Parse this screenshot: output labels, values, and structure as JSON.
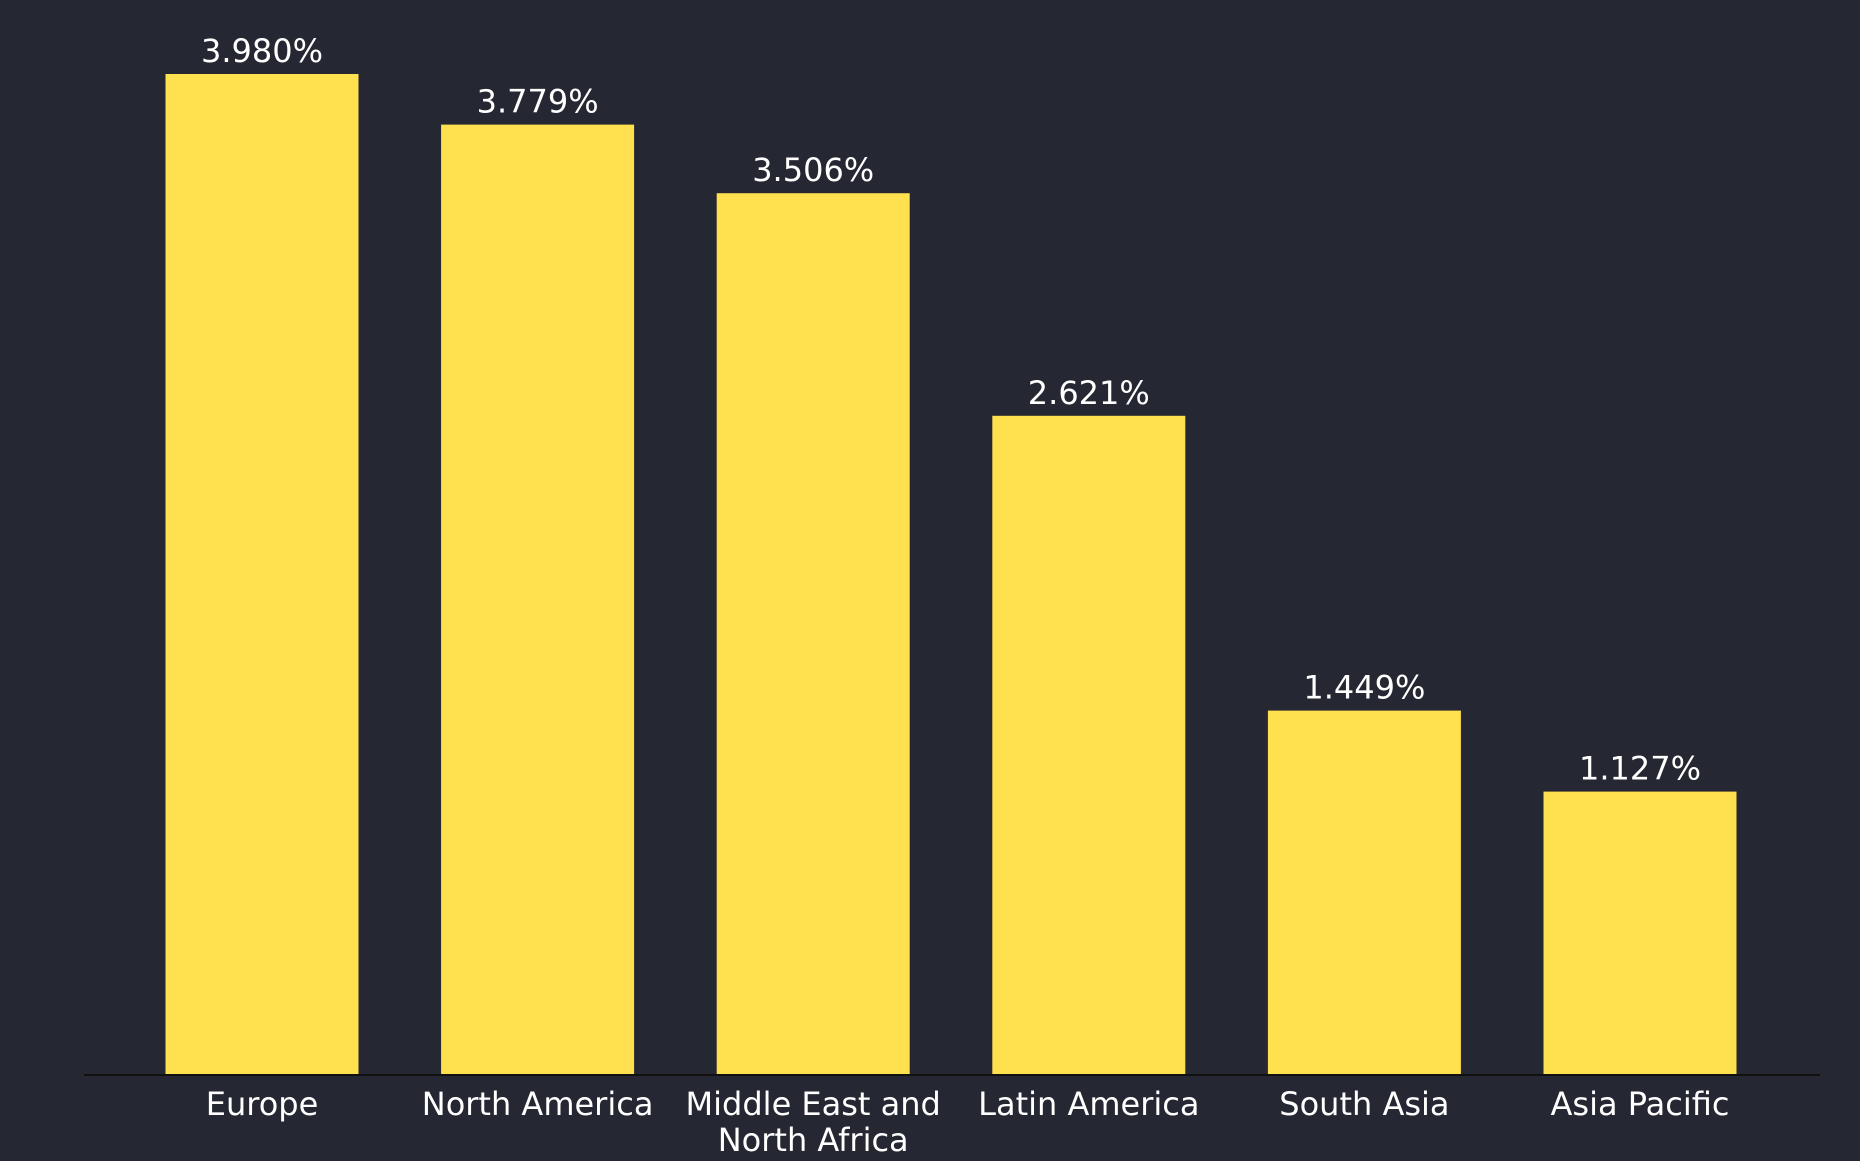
{
  "chart_data": {
    "type": "bar",
    "categories": [
      "Europe",
      "North America",
      "Middle East and North Africa",
      "Latin America",
      "South Asia",
      "Asia Pacific"
    ],
    "category_label_lines": [
      [
        "Europe"
      ],
      [
        "North America"
      ],
      [
        "Middle East and",
        "North Africa"
      ],
      [
        "Latin America"
      ],
      [
        "South Asia"
      ],
      [
        "Asia Pacific"
      ]
    ],
    "values": [
      3.98,
      3.779,
      3.506,
      2.621,
      1.449,
      1.127
    ],
    "value_labels": [
      "3.980%",
      "3.779%",
      "3.506%",
      "2.621%",
      "1.449%",
      "1.127%"
    ],
    "title": "",
    "xlabel": "",
    "ylabel": "",
    "ylim": [
      0,
      3.98
    ],
    "grid": false,
    "legend": "none",
    "colors": {
      "background": "#252732",
      "bar": "#FFE04F",
      "text": "#FFFFFF",
      "axis": "#111111"
    }
  }
}
